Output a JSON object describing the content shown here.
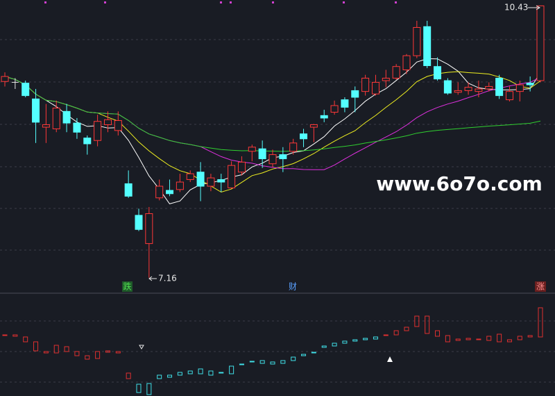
{
  "chart_data": {
    "type": "candlestick",
    "ylim": [
      6.99,
      10.5
    ],
    "up_color": "#ff3838",
    "down_color": "#54ffff",
    "open": [
      9.52,
      9.51,
      9.5,
      9.31,
      8.97,
      8.95,
      9.16,
      9.02,
      8.84,
      8.81,
      9.0,
      8.93,
      8.29,
      7.91,
      7.57,
      8.12,
      8.21,
      8.22,
      8.34,
      8.43,
      8.26,
      8.34,
      8.24,
      8.43,
      8.68,
      8.71,
      8.53,
      8.64,
      8.68,
      8.89,
      8.97,
      9.11,
      9.15,
      9.3,
      9.41,
      9.4,
      9.37,
      9.53,
      9.56,
      9.66,
      9.83,
      10.18,
      9.7,
      9.53,
      9.39,
      9.41,
      9.4,
      9.43,
      9.56,
      9.3,
      9.4,
      9.5,
      9.53
    ],
    "high": [
      9.63,
      9.56,
      9.53,
      9.43,
      9.25,
      9.29,
      9.25,
      9.08,
      8.87,
      9.12,
      9.16,
      9.16,
      8.45,
      7.99,
      8.01,
      8.34,
      8.34,
      8.41,
      8.45,
      8.55,
      8.41,
      8.41,
      8.56,
      8.62,
      8.76,
      8.81,
      8.7,
      8.73,
      8.83,
      8.95,
      9.01,
      9.18,
      9.29,
      9.33,
      9.46,
      9.6,
      9.6,
      9.66,
      9.73,
      9.85,
      10.25,
      10.25,
      9.81,
      9.56,
      9.51,
      9.51,
      9.53,
      9.51,
      9.6,
      9.46,
      9.53,
      9.58,
      10.43
    ],
    "low": [
      9.46,
      9.43,
      9.33,
      8.78,
      8.78,
      8.91,
      8.91,
      8.83,
      8.64,
      8.74,
      8.91,
      8.87,
      8.12,
      7.72,
      7.16,
      8.09,
      8.14,
      8.19,
      8.31,
      8.08,
      8.2,
      8.19,
      8.23,
      8.39,
      8.56,
      8.48,
      8.49,
      8.43,
      8.64,
      8.73,
      8.79,
      9.03,
      9.12,
      9.15,
      9.15,
      9.35,
      9.35,
      9.45,
      9.54,
      9.61,
      9.8,
      9.68,
      9.53,
      9.36,
      9.36,
      9.36,
      9.33,
      9.4,
      9.31,
      9.28,
      9.28,
      9.4,
      9.51
    ],
    "close": [
      9.58,
      9.51,
      9.35,
      9.03,
      9.0,
      9.2,
      9.02,
      8.91,
      8.77,
      9.04,
      9.06,
      9.05,
      8.14,
      7.74,
      7.93,
      8.26,
      8.17,
      8.31,
      8.41,
      8.26,
      8.36,
      8.31,
      8.51,
      8.55,
      8.73,
      8.59,
      8.64,
      8.59,
      8.78,
      8.83,
      9.0,
      9.08,
      9.23,
      9.21,
      9.33,
      9.56,
      9.51,
      9.56,
      9.7,
      9.83,
      10.17,
      9.71,
      9.55,
      9.38,
      9.41,
      9.45,
      9.43,
      9.46,
      9.35,
      9.4,
      9.48,
      9.48,
      10.43
    ],
    "annotations": {
      "high": 10.43,
      "low": 7.16
    },
    "markers": {
      "fall": "跌",
      "finance": "财",
      "rise": "涨"
    },
    "watermark": "www.6o7o.com"
  },
  "indicator": {
    "type": "bar",
    "ylim": [
      0,
      145
    ],
    "low": [
      87,
      86,
      78,
      65,
      62,
      62,
      64,
      58,
      53,
      54,
      63,
      62,
      25,
      5,
      2,
      25,
      27,
      30,
      32,
      32,
      30,
      33,
      32,
      45,
      49,
      47,
      46,
      47,
      51,
      58,
      62,
      70,
      72,
      76,
      79,
      81,
      82,
      87,
      88,
      94,
      100,
      90,
      86,
      78,
      80,
      81,
      81,
      80,
      78,
      78,
      81,
      85,
      85
    ],
    "high": [
      88,
      88,
      85,
      78,
      64,
      73,
      71,
      64,
      58,
      64,
      65,
      64,
      33,
      17,
      18,
      30,
      30,
      34,
      36,
      39,
      36,
      34,
      43,
      46,
      50,
      51,
      49,
      51,
      56,
      60,
      63,
      72,
      76,
      79,
      81,
      83,
      85,
      88,
      94,
      99,
      115,
      115,
      94,
      87,
      82,
      83,
      82,
      86,
      89,
      81,
      86,
      87,
      127
    ],
    "colors": [
      "#e03030",
      "#e03030",
      "#e03030",
      "#e03030",
      "#e03030",
      "#e03030",
      "#e03030",
      "#e03030",
      "#e03030",
      "#e03030",
      "#e03030",
      "#e03030",
      "#e03030",
      "#40e0e8",
      "#40e0e8",
      "#40e0e8",
      "#40e0e8",
      "#40e0e8",
      "#40e0e8",
      "#40e0e8",
      "#40e0e8",
      "#40e0e8",
      "#40e0e8",
      "#40e0e8",
      "#40e0e8",
      "#40e0e8",
      "#40e0e8",
      "#40e0e8",
      "#40e0e8",
      "#40e0e8",
      "#40e0e8",
      "#40e0e8",
      "#40e0e8",
      "#40e0e8",
      "#40e0e8",
      "#40e0e8",
      "#40e0e8",
      "#e03030",
      "#e03030",
      "#e03030",
      "#e03030",
      "#e03030",
      "#e03030",
      "#e03030",
      "#e03030",
      "#e03030",
      "#e03030",
      "#e03030",
      "#e03030",
      "#e03030",
      "#e03030",
      "#e03030",
      "#e03030"
    ]
  }
}
